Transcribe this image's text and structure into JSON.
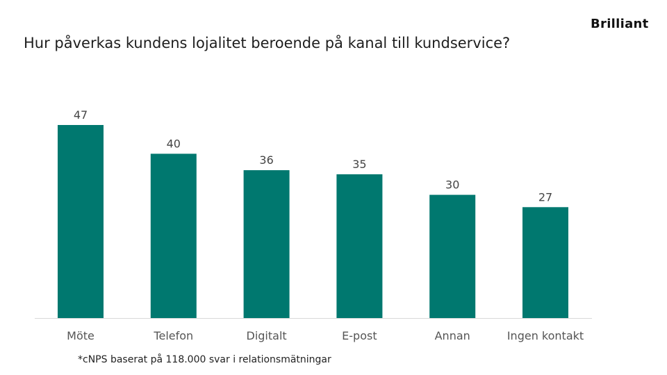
{
  "logo": "Brilliant",
  "footnote": "*cNPS baserat på 118.000 svar i relationsmätningar",
  "colors": {
    "bar": "#00786F",
    "axis": "#d9d9d9"
  },
  "chart_data": {
    "type": "bar",
    "title": "Hur påverkas kundens lojalitet beroende på kanal till kundservice?",
    "categories": [
      "Möte",
      "Telefon",
      "Digitalt",
      "E-post",
      "Annan",
      "Ingen kontakt"
    ],
    "values": [
      47,
      40,
      36,
      35,
      30,
      27
    ],
    "value_labels": [
      "47",
      "40",
      "36",
      "35",
      "30",
      "27"
    ],
    "xlabel": "",
    "ylabel": "",
    "ylim": [
      0,
      47
    ],
    "grid": false
  }
}
